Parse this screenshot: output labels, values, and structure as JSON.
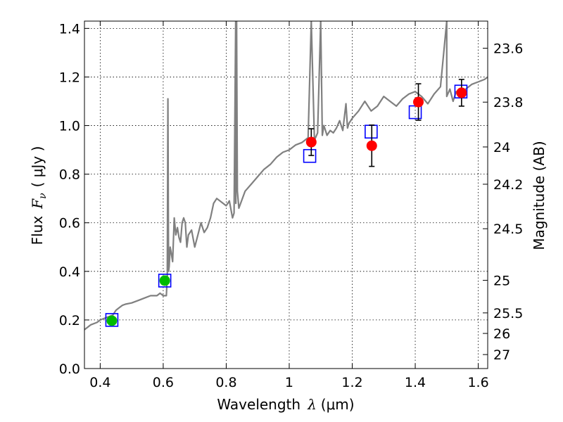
{
  "chart_data": {
    "type": "scatter",
    "xlabel_prefix": "Wavelength",
    "xlabel_symbol": "λ",
    "xlabel_unit": "(μm)",
    "ylabel_prefix": "Flux",
    "ylabel_symbol": "F",
    "ylabel_subscript": "ν",
    "ylabel_unit": "( μJy )",
    "y2label": "Magnitude (AB)",
    "xlim": [
      0.35,
      1.63
    ],
    "ylim": [
      0.0,
      1.43
    ],
    "grid": true,
    "x_ticks": [
      {
        "value": 0.4,
        "label": "0.4"
      },
      {
        "value": 0.6,
        "label": "0.6"
      },
      {
        "value": 0.8,
        "label": "0.8"
      },
      {
        "value": 1.0,
        "label": "1"
      },
      {
        "value": 1.2,
        "label": "1.2"
      },
      {
        "value": 1.4,
        "label": "1.4"
      },
      {
        "value": 1.6,
        "label": "1.6"
      }
    ],
    "y_ticks": [
      {
        "value": 0.0,
        "label": "0.0"
      },
      {
        "value": 0.2,
        "label": "0.2"
      },
      {
        "value": 0.4,
        "label": "0.4"
      },
      {
        "value": 0.6,
        "label": "0.6"
      },
      {
        "value": 0.8,
        "label": "0.8"
      },
      {
        "value": 1.0,
        "label": "1.0"
      },
      {
        "value": 1.2,
        "label": "1.2"
      },
      {
        "value": 1.4,
        "label": "1.4"
      }
    ],
    "y2_ticks": [
      {
        "label": "23.6",
        "mag": 23.6
      },
      {
        "label": "23.8",
        "mag": 23.8
      },
      {
        "label": "24",
        "mag": 24.0
      },
      {
        "label": "24.2",
        "mag": 24.2
      },
      {
        "label": "24.5",
        "mag": 24.5
      },
      {
        "label": "25",
        "mag": 25.0
      },
      {
        "label": "25.5",
        "mag": 25.5
      },
      {
        "label": "26",
        "mag": 26.0
      },
      {
        "label": "27",
        "mag": 27.0
      }
    ],
    "series": [
      {
        "kind": "line",
        "color": "#808080",
        "x": [
          0.35,
          0.37,
          0.39,
          0.4,
          0.42,
          0.44,
          0.45,
          0.46,
          0.47,
          0.48,
          0.5,
          0.52,
          0.54,
          0.56,
          0.58,
          0.59,
          0.6,
          0.61,
          0.613,
          0.615,
          0.617,
          0.619,
          0.622,
          0.625,
          0.63,
          0.635,
          0.64,
          0.645,
          0.65,
          0.655,
          0.66,
          0.665,
          0.67,
          0.675,
          0.68,
          0.69,
          0.7,
          0.71,
          0.72,
          0.73,
          0.74,
          0.75,
          0.76,
          0.77,
          0.78,
          0.79,
          0.8,
          0.81,
          0.82,
          0.825,
          0.83,
          0.8305,
          0.833,
          0.8355,
          0.84,
          0.86,
          0.88,
          0.9,
          0.92,
          0.94,
          0.96,
          0.98,
          1.0,
          1.02,
          1.04,
          1.06,
          1.07,
          1.08,
          1.09,
          1.1,
          1.105,
          1.11,
          1.12,
          1.13,
          1.14,
          1.15,
          1.16,
          1.17,
          1.18,
          1.185,
          1.19,
          1.195,
          1.2,
          1.22,
          1.24,
          1.26,
          1.28,
          1.3,
          1.32,
          1.34,
          1.36,
          1.38,
          1.4,
          1.42,
          1.44,
          1.46,
          1.48,
          1.5,
          1.5,
          1.51,
          1.52,
          1.53,
          1.54,
          1.56,
          1.58,
          1.6,
          1.62,
          1.63
        ],
        "y": [
          0.16,
          0.18,
          0.19,
          0.2,
          0.21,
          0.22,
          0.24,
          0.25,
          0.26,
          0.265,
          0.27,
          0.28,
          0.29,
          0.3,
          0.3,
          0.31,
          0.3,
          0.3,
          0.38,
          1.11,
          0.4,
          0.42,
          0.5,
          0.48,
          0.44,
          0.62,
          0.55,
          0.58,
          0.54,
          0.52,
          0.6,
          0.62,
          0.6,
          0.5,
          0.55,
          0.57,
          0.5,
          0.55,
          0.6,
          0.56,
          0.58,
          0.62,
          0.68,
          0.7,
          0.69,
          0.68,
          0.67,
          0.69,
          0.62,
          0.64,
          1.43,
          0.68,
          1.43,
          0.73,
          0.66,
          0.73,
          0.76,
          0.79,
          0.82,
          0.84,
          0.87,
          0.89,
          0.9,
          0.92,
          0.93,
          0.95,
          1.43,
          0.94,
          0.97,
          1.43,
          0.96,
          1.0,
          0.96,
          0.98,
          0.97,
          0.99,
          1.02,
          0.98,
          1.09,
          0.99,
          1.01,
          1.02,
          1.03,
          1.06,
          1.1,
          1.06,
          1.08,
          1.12,
          1.1,
          1.08,
          1.11,
          1.13,
          1.14,
          1.12,
          1.09,
          1.13,
          1.16,
          1.43,
          1.12,
          1.15,
          1.1,
          1.14,
          1.13,
          1.15,
          1.17,
          1.18,
          1.19,
          1.2
        ]
      },
      {
        "kind": "open_squares",
        "color": "#0000ff",
        "x": [
          0.437,
          0.605,
          1.065,
          1.26,
          1.4,
          1.545
        ],
        "y": [
          0.2,
          0.362,
          0.875,
          0.975,
          1.055,
          1.14
        ]
      },
      {
        "kind": "points_with_errors",
        "color": "#00bb00",
        "x": [
          0.437,
          0.605
        ],
        "y": [
          0.197,
          0.362
        ],
        "yerr": [
          0.015,
          0.015
        ]
      },
      {
        "kind": "points_with_errors",
        "color": "#ff0000",
        "x": [
          1.07,
          1.262,
          1.41,
          1.547
        ],
        "y": [
          0.932,
          0.917,
          1.097,
          1.135
        ],
        "yerr": [
          0.055,
          0.085,
          0.075,
          0.055
        ]
      }
    ]
  }
}
